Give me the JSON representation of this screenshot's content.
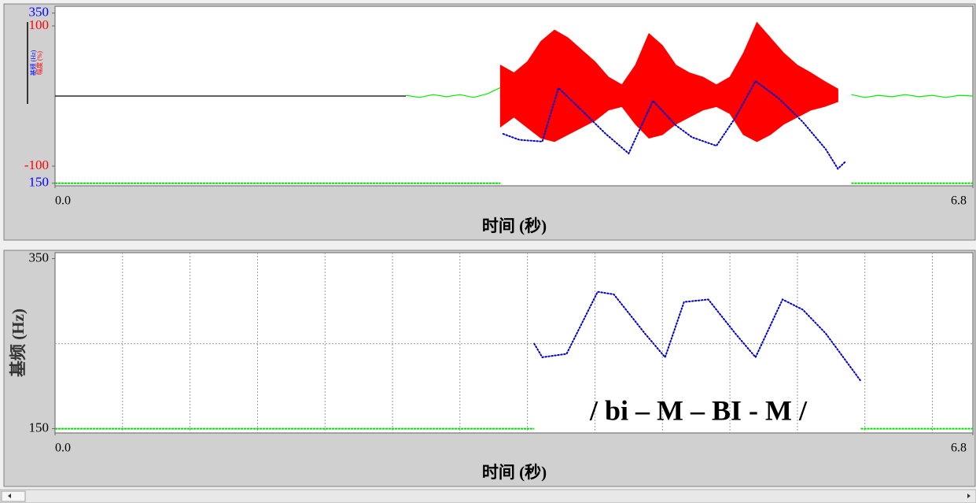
{
  "chart_data": [
    {
      "type": "line",
      "xlabel": "时间 (秒)",
      "ylabel": "幅度 (%)",
      "y2label": "基频 (Hz)",
      "xlim": [
        0,
        6.8
      ],
      "xticks": [
        {
          "value": 0,
          "label": "0.0"
        },
        6.8
      ],
      "ylim": [
        -128,
        128
      ],
      "yticks": [
        100,
        -100
      ],
      "ycolor": "#ff0000",
      "y2lim": [
        147,
        358
      ],
      "y2ticks": [
        350,
        150
      ],
      "y2color": "#0000ff",
      "series": [
        {
          "kind": "line",
          "color": "#000000",
          "x": [
            0,
            2.6
          ],
          "values": [
            0,
            0
          ]
        },
        {
          "kind": "line",
          "color": "#00ee00",
          "x": [
            2.6,
            2.7,
            2.8,
            2.9,
            3.0,
            3.1,
            3.2,
            3.3
          ],
          "values": [
            1,
            -2,
            2,
            -1,
            2,
            -2,
            3,
            12
          ]
        },
        {
          "kind": "line",
          "color": "#00ee00",
          "x": [
            5.9,
            6.0,
            6.1,
            6.2,
            6.3,
            6.4,
            6.5,
            6.6,
            6.7,
            6.8
          ],
          "values": [
            2,
            -2,
            1,
            -1,
            2,
            -1,
            1,
            -2,
            1,
            0
          ]
        },
        {
          "kind": "area",
          "color": "#ff0000",
          "x": [
            3.3,
            3.4,
            3.5,
            3.6,
            3.7,
            3.8,
            3.9,
            4.0,
            4.1,
            4.2,
            4.3,
            4.4,
            4.5,
            4.6,
            4.7,
            4.8,
            4.9,
            5.0,
            5.1,
            5.2,
            5.3,
            5.4,
            5.5,
            5.6,
            5.7,
            5.8
          ],
          "values": [
            44,
            33,
            49,
            78,
            94,
            83,
            66,
            49,
            27,
            16,
            44,
            89,
            72,
            44,
            33,
            27,
            16,
            27,
            61,
            105,
            83,
            61,
            44,
            33,
            21,
            10
          ]
        },
        {
          "kind": "area",
          "color": "#ff0000",
          "x": [
            3.3,
            3.4,
            3.5,
            3.6,
            3.7,
            3.8,
            3.9,
            4.0,
            4.1,
            4.2,
            4.3,
            4.4,
            4.5,
            4.6,
            4.7,
            4.8,
            4.9,
            5.0,
            5.1,
            5.2,
            5.3,
            5.4,
            5.5,
            5.6,
            5.7,
            5.8
          ],
          "values": [
            -44,
            -30,
            -45,
            -60,
            -65,
            -55,
            -45,
            -35,
            -20,
            -15,
            -40,
            -60,
            -55,
            -40,
            -30,
            -20,
            -15,
            -25,
            -55,
            -65,
            -55,
            -40,
            -30,
            -20,
            -15,
            -8
          ]
        },
        {
          "kind": "dots",
          "color": "#0000cc",
          "axis": "y2",
          "x": [
            3.32,
            3.44,
            3.61,
            3.73,
            3.9,
            4.08,
            4.25,
            4.43,
            4.6,
            4.72,
            4.9,
            5.04,
            5.19,
            5.36,
            5.54,
            5.71,
            5.8,
            5.86
          ],
          "values": [
            208,
            201,
            199,
            262,
            236,
            208,
            185,
            247,
            218,
            204,
            194,
            227,
            270,
            250,
            222,
            190,
            167,
            176
          ]
        },
        {
          "kind": "dashed",
          "color": "#00dd00",
          "axis": "y2",
          "x": [
            0,
            3.3
          ],
          "values": [
            150,
            150
          ]
        },
        {
          "kind": "dashed",
          "color": "#00dd00",
          "axis": "y2",
          "x": [
            5.9,
            6.8
          ],
          "values": [
            150,
            150
          ]
        }
      ]
    },
    {
      "type": "line",
      "xlabel": "时间 (秒)",
      "ylabel": "基频 (Hz)",
      "xlim": [
        0,
        6.8
      ],
      "xticks": [
        {
          "value": 0,
          "label": "0.0"
        },
        6.8
      ],
      "xgrid": [
        0.5,
        1,
        1.5,
        2,
        2.5,
        3,
        3.5,
        4,
        4.5,
        5,
        5.5,
        6,
        6.5
      ],
      "ylim": [
        145,
        357
      ],
      "yticks": [
        350,
        150
      ],
      "ycolor": "#000000",
      "ygrid": [
        250
      ],
      "annotation": "/ bi – M – BI - M /",
      "series": [
        {
          "kind": "dots",
          "color": "#0000cc",
          "x": [
            3.55,
            3.61,
            3.79,
            4.02,
            4.14,
            4.37,
            4.52,
            4.66,
            4.84,
            5.04,
            5.19,
            5.39,
            5.54,
            5.71,
            5.97
          ],
          "values": [
            250,
            234,
            238,
            311,
            308,
            262,
            234,
            299,
            302,
            262,
            234,
            302,
            290,
            262,
            206
          ]
        },
        {
          "kind": "dashed",
          "color": "#00dd00",
          "x": [
            0,
            3.55
          ],
          "values": [
            150,
            150
          ]
        },
        {
          "kind": "dashed",
          "color": "#00dd00",
          "x": [
            5.97,
            6.8
          ],
          "values": [
            150,
            150
          ]
        }
      ]
    }
  ]
}
